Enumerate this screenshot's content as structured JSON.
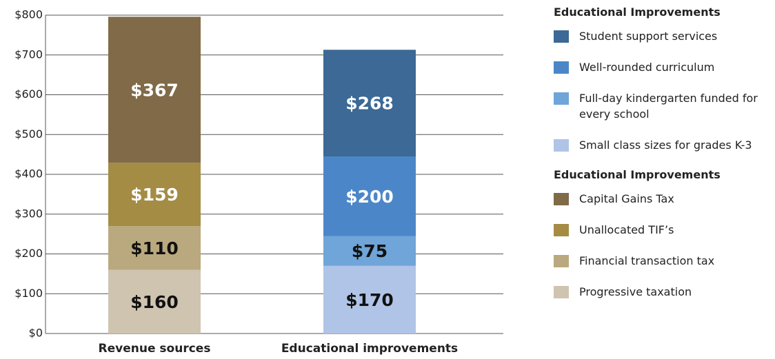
{
  "chart_data": {
    "type": "stacked_bar",
    "categories": [
      "Revenue sources",
      "Educational improvements"
    ],
    "series": [
      {
        "name": "Progressive taxation",
        "color": "#cfc4b0",
        "values": [
          160,
          null
        ],
        "value_labels": [
          "$160",
          null
        ]
      },
      {
        "name": "Financial transaction tax",
        "color": "#baa97e",
        "values": [
          110,
          null
        ],
        "value_labels": [
          "$110",
          null
        ]
      },
      {
        "name": "Unallocated TIF’s",
        "color": "#a48c45",
        "values": [
          159,
          null
        ],
        "value_labels": [
          "$159",
          null
        ]
      },
      {
        "name": "Capital Gains Tax",
        "color": "#806a48",
        "values": [
          367,
          null
        ],
        "value_labels": [
          "$367",
          null
        ]
      },
      {
        "name": "Small class sizes for grades K-3",
        "color": "#afc4e6",
        "values": [
          null,
          170
        ],
        "value_labels": [
          null,
          "$170"
        ]
      },
      {
        "name": "Full-day kindergarten funded for every school",
        "color": "#6fa5d8",
        "values": [
          null,
          75
        ],
        "value_labels": [
          null,
          "$75"
        ]
      },
      {
        "name": "Well-rounded curriculum",
        "color": "#4b87c8",
        "values": [
          null,
          200
        ],
        "value_labels": [
          null,
          "$200"
        ]
      },
      {
        "name": "Student support services",
        "color": "#3c6995",
        "values": [
          null,
          268
        ],
        "value_labels": [
          null,
          "$268"
        ]
      }
    ],
    "legend_titles": [
      "Educational Improvements",
      "Educational Improvements"
    ],
    "ylim": [
      0,
      800
    ],
    "yticks": [
      {
        "value": 0,
        "label": "$0"
      },
      {
        "value": 100,
        "label": "$100"
      },
      {
        "value": 200,
        "label": "$200"
      },
      {
        "value": 300,
        "label": "$300"
      },
      {
        "value": 400,
        "label": "$400"
      },
      {
        "value": 500,
        "label": "$500"
      },
      {
        "value": 600,
        "label": "$600"
      },
      {
        "value": 700,
        "label": "$700"
      },
      {
        "value": 800,
        "label": "$800"
      }
    ],
    "grid": true
  }
}
